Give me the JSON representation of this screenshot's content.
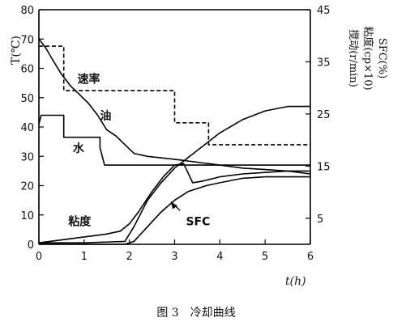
{
  "figure": {
    "caption": "图 3　冷却曲线"
  },
  "chart_data": {
    "type": "line",
    "x": {
      "label": "t(h)",
      "ticks": [
        "0",
        "1",
        "2",
        "3",
        "4",
        "5",
        "6"
      ],
      "range": [
        0,
        6
      ]
    },
    "y_left": {
      "label": "T(℃)",
      "ticks": [
        "0",
        "10",
        "20",
        "30",
        "40",
        "50",
        "60",
        "70",
        "80"
      ],
      "range": [
        0,
        80
      ]
    },
    "y_right": {
      "label_lines": [
        "搅动(r/min)",
        "粘度(cp×10)",
        "SFC(%)"
      ],
      "ticks": [
        "5",
        "15",
        "25",
        "35",
        "45"
      ],
      "range": [
        0,
        45
      ]
    },
    "grid": false,
    "series": [
      {
        "name": "速率",
        "axis": "right",
        "style": "dashed",
        "points": [
          [
            0,
            38
          ],
          [
            0.55,
            38
          ],
          [
            0.55,
            29.5
          ],
          [
            3,
            29.5
          ],
          [
            3,
            23.3
          ],
          [
            3.75,
            23.3
          ],
          [
            3.75,
            19.1
          ],
          [
            6,
            19.1
          ]
        ]
      },
      {
        "name": "油",
        "axis": "left",
        "style": "solid",
        "points": [
          [
            0,
            70
          ],
          [
            0.15,
            67
          ],
          [
            0.3,
            63
          ],
          [
            0.5,
            58
          ],
          [
            0.7,
            54
          ],
          [
            0.9,
            51
          ],
          [
            1.1,
            48
          ],
          [
            1.3,
            44
          ],
          [
            1.5,
            39
          ],
          [
            1.7,
            37
          ],
          [
            1.9,
            34
          ],
          [
            2.1,
            31
          ],
          [
            2.4,
            30
          ],
          [
            3,
            29
          ],
          [
            3.5,
            28
          ],
          [
            4,
            27
          ],
          [
            4.5,
            26
          ],
          [
            5,
            25.5
          ],
          [
            5.5,
            25
          ],
          [
            6,
            25
          ]
        ]
      },
      {
        "name": "水",
        "axis": "left",
        "style": "solid",
        "points": [
          [
            0,
            41
          ],
          [
            0.05,
            44
          ],
          [
            0.55,
            44
          ],
          [
            0.55,
            36.5
          ],
          [
            1.35,
            36.5
          ],
          [
            1.35,
            33
          ],
          [
            1.45,
            27
          ],
          [
            6,
            27
          ]
        ]
      },
      {
        "name": "粘度",
        "axis": "left",
        "style": "solid",
        "points": [
          [
            0,
            0.5
          ],
          [
            0.5,
            1.5
          ],
          [
            1,
            2.5
          ],
          [
            1.5,
            3.5
          ],
          [
            1.8,
            4.5
          ],
          [
            2,
            7
          ],
          [
            2.2,
            11
          ],
          [
            2.5,
            18
          ],
          [
            2.75,
            23
          ],
          [
            3,
            27
          ],
          [
            3.2,
            27.5
          ],
          [
            3.4,
            21
          ],
          [
            3.6,
            21.5
          ],
          [
            4,
            23
          ],
          [
            4.5,
            24
          ],
          [
            5,
            24.5
          ],
          [
            5.5,
            25
          ],
          [
            6,
            24
          ]
        ]
      },
      {
        "name": "SFC",
        "axis": "left",
        "style": "solid",
        "points": [
          [
            0,
            0
          ],
          [
            1,
            0
          ],
          [
            1.9,
            0
          ],
          [
            2.1,
            1
          ],
          [
            2.4,
            6
          ],
          [
            2.7,
            11
          ],
          [
            3,
            15
          ],
          [
            3.3,
            18
          ],
          [
            3.7,
            20
          ],
          [
            4,
            21
          ],
          [
            4.5,
            22.5
          ],
          [
            5,
            23
          ],
          [
            6,
            23
          ]
        ]
      },
      {
        "name": "",
        "axis": "left",
        "style": "solid",
        "points": [
          [
            0,
            0.5
          ],
          [
            1,
            0.5
          ],
          [
            1.9,
            1
          ],
          [
            2.1,
            6
          ],
          [
            2.4,
            15
          ],
          [
            2.7,
            21
          ],
          [
            3,
            26
          ],
          [
            3.5,
            32
          ],
          [
            4,
            38
          ],
          [
            4.5,
            42.5
          ],
          [
            5,
            45.5
          ],
          [
            5.5,
            47
          ],
          [
            6,
            47
          ]
        ]
      }
    ],
    "annotations": [
      {
        "text": "速率",
        "x": 0.85,
        "y": 55
      },
      {
        "text": "油",
        "x": 1.35,
        "y": 42.5
      },
      {
        "text": "水",
        "x": 0.75,
        "y": 31.5
      },
      {
        "text": "粘度",
        "x": 0.65,
        "y": 6.5
      },
      {
        "text": "SFC",
        "x": 3.25,
        "y": 6.5
      }
    ]
  }
}
